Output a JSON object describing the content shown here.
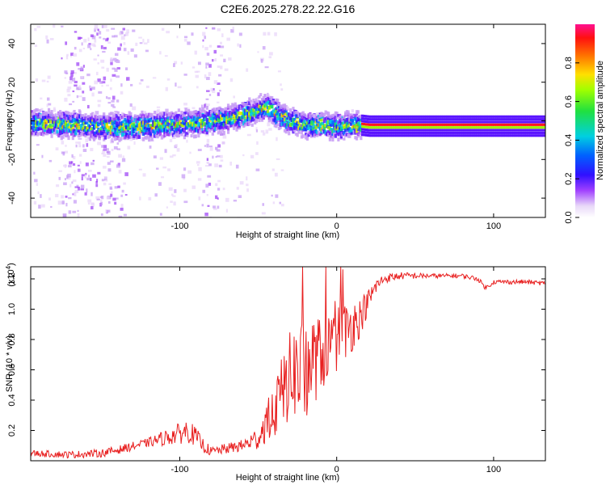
{
  "title": "C2E6.2025.278.22.22.G16",
  "colors": {
    "snr_line": "#e82020",
    "spectrum_core": "#e02020",
    "spectrum_band": "#1a1aff"
  },
  "chart_data": [
    {
      "type": "heatmap",
      "name": "spectrogram",
      "title": "C2E6.2025.278.22.22.G16",
      "xlabel": "Height of straight line (km)",
      "ylabel": "Frequency (Hz)",
      "xlim": [
        -195,
        133
      ],
      "ylim": [
        -50,
        50
      ],
      "x_ticks": [
        -100,
        0,
        100
      ],
      "x_tick_labels": [
        "-100",
        "0",
        "100"
      ],
      "y_ticks": [
        -40,
        -20,
        0,
        20,
        40
      ],
      "y_tick_labels": [
        "-40",
        "-20",
        "0",
        "20",
        "40"
      ],
      "ridge": {
        "x": [
          -195,
          -170,
          -150,
          -130,
          -110,
          -90,
          -70,
          -60,
          -50,
          -45,
          -40,
          -35,
          -30,
          -25,
          -20,
          -10,
          0,
          10,
          20,
          40,
          60,
          80,
          90,
          100,
          133
        ],
        "y": [
          0,
          -1,
          -2,
          -2,
          -1,
          0,
          2,
          4,
          7,
          9,
          5,
          3,
          1,
          0,
          -1,
          -1,
          -2,
          -1,
          -2,
          -2,
          -2,
          -2,
          -2,
          -2,
          -2
        ]
      },
      "colorbar": {
        "label": "Normalized spectral amplitude",
        "range": [
          0,
          1
        ],
        "ticks": [
          0.0,
          0.2,
          0.4,
          0.6,
          0.8
        ],
        "tick_labels": [
          "0.0",
          "0.2",
          "0.4",
          "0.6",
          "0.8"
        ]
      }
    },
    {
      "type": "line",
      "name": "snr",
      "xlabel": "Height of straight line (km)",
      "ylabel": "SNR (10 * v/v)",
      "y_multiplier": "(x10",
      "y_multiplier_exp": "4",
      "y_multiplier_close": ")",
      "xlim": [
        -195,
        133
      ],
      "ylim": [
        0,
        1.28
      ],
      "x_ticks": [
        -100,
        0,
        100
      ],
      "x_tick_labels": [
        "-100",
        "0",
        "100"
      ],
      "y_ticks": [
        0.2,
        0.4,
        0.6,
        0.8,
        1.0,
        1.2
      ],
      "y_tick_labels": [
        "0.2",
        "0.4",
        "0.6",
        "0.8",
        "1.0",
        "1.2"
      ],
      "envelope": {
        "x": [
          -195,
          -170,
          -150,
          -140,
          -120,
          -110,
          -100,
          -95,
          -90,
          -85,
          -80,
          -75,
          -70,
          -60,
          -50,
          -45,
          -40,
          -35,
          -30,
          -25,
          -20,
          -15,
          -10,
          -5,
          0,
          5,
          10,
          15,
          20,
          25,
          30,
          40,
          50,
          60,
          70,
          80,
          90,
          95,
          100,
          110,
          120,
          133
        ],
        "y": [
          0.05,
          0.04,
          0.05,
          0.07,
          0.12,
          0.15,
          0.18,
          0.2,
          0.16,
          0.1,
          0.06,
          0.07,
          0.08,
          0.1,
          0.15,
          0.25,
          0.32,
          0.45,
          0.55,
          0.6,
          0.62,
          0.66,
          0.7,
          0.75,
          0.8,
          0.85,
          0.9,
          0.95,
          1.05,
          1.15,
          1.2,
          1.22,
          1.22,
          1.22,
          1.22,
          1.22,
          1.2,
          1.14,
          1.18,
          1.18,
          1.18,
          1.17
        ]
      },
      "noise_amplitude": {
        "x": [
          -195,
          -120,
          -110,
          -95,
          -80,
          -60,
          -50,
          -40,
          -30,
          -20,
          -10,
          0,
          10,
          20,
          30,
          60,
          133
        ],
        "a": [
          0.02,
          0.03,
          0.05,
          0.08,
          0.03,
          0.04,
          0.08,
          0.18,
          0.3,
          0.35,
          0.25,
          0.22,
          0.18,
          0.08,
          0.03,
          0.015,
          0.015
        ]
      }
    }
  ]
}
